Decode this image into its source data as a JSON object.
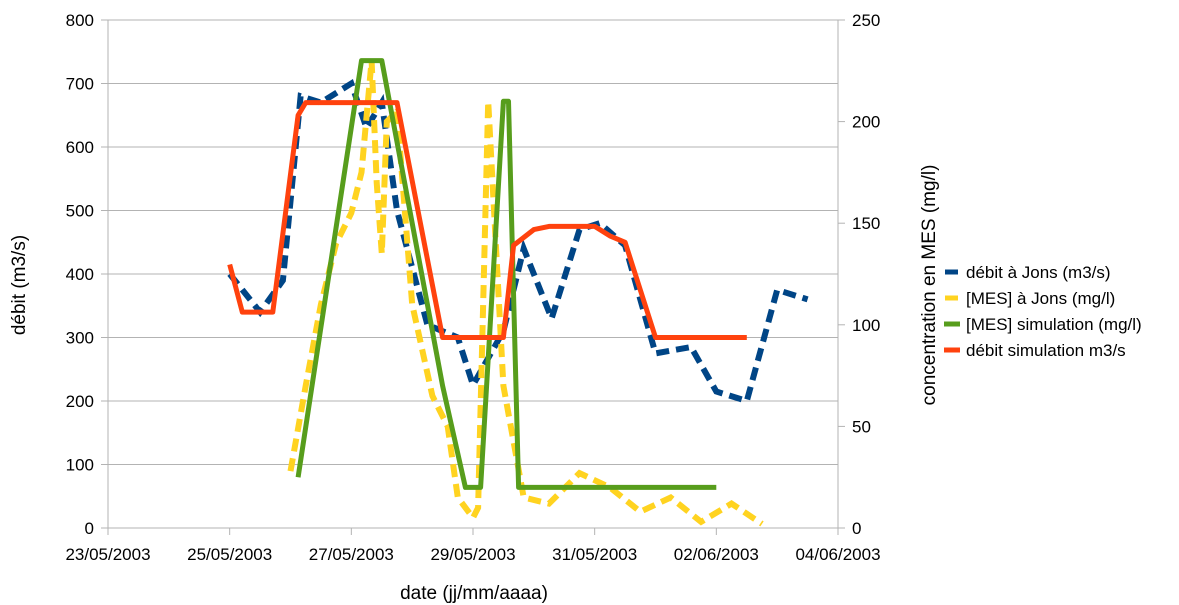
{
  "chart_data": {
    "type": "line",
    "title": "",
    "xlabel": "date (jj/mm/aaaa)",
    "ylabel": "débit (m3/s)",
    "y2label": "concentration en MES (mg/l)",
    "xlim": [
      "23/05/2003",
      "04/06/2003"
    ],
    "x_ticks": [
      "23/05/2003",
      "25/05/2003",
      "27/05/2003",
      "29/05/2003",
      "31/05/2003",
      "02/06/2003",
      "04/06/2003"
    ],
    "ylim": [
      0,
      800
    ],
    "y_ticks": [
      "0",
      "100",
      "200",
      "300",
      "400",
      "500",
      "600",
      "700",
      "800"
    ],
    "y2lim": [
      0,
      250
    ],
    "y2_ticks": [
      "0",
      "50",
      "100",
      "150",
      "200",
      "250"
    ],
    "grid": true,
    "legend_position": "right",
    "series": [
      {
        "name": "débit à Jons (m3/s)",
        "axis": "left",
        "color": "#004586",
        "dash": true,
        "x": [
          "25/05/2003 00:00",
          "25/05/2003 12:00",
          "25/05/2003 21:00",
          "26/05/2003 04:00",
          "26/05/2003 12:00",
          "27/05/2003 00:00",
          "27/05/2003 06:00",
          "27/05/2003 12:00",
          "27/05/2003 18:00",
          "28/05/2003 06:00",
          "28/05/2003 18:00",
          "29/05/2003 00:00",
          "29/05/2003 12:00",
          "29/05/2003 20:00",
          "30/05/2003 07:00",
          "30/05/2003 18:00",
          "31/05/2003 02:00",
          "31/05/2003 12:00",
          "01/06/2003 00:00",
          "01/06/2003 14:00",
          "02/06/2003 00:00",
          "02/06/2003 12:00",
          "03/06/2003 00:00",
          "03/06/2003 12:00"
        ],
        "values": [
          400,
          340,
          390,
          680,
          670,
          700,
          630,
          670,
          500,
          320,
          300,
          225,
          310,
          440,
          330,
          470,
          480,
          445,
          275,
          285,
          215,
          200,
          375,
          360
        ]
      },
      {
        "name": "[MES] à Jons (mg/l)",
        "axis": "right",
        "color": "#FFD320",
        "dash": true,
        "x": [
          "26/05/2003 00:00",
          "26/05/2003 06:00",
          "26/05/2003 12:00",
          "26/05/2003 18:00",
          "27/05/2003 00:00",
          "27/05/2003 04:00",
          "27/05/2003 08:00",
          "27/05/2003 10:00",
          "27/05/2003 12:00",
          "27/05/2003 14:00",
          "27/05/2003 18:00",
          "28/05/2003 00:00",
          "28/05/2003 08:00",
          "28/05/2003 14:00",
          "28/05/2003 18:00",
          "29/05/2003 00:00",
          "29/05/2003 02:00",
          "29/05/2003 06:00",
          "29/05/2003 12:00",
          "29/05/2003 20:00",
          "30/05/2003 06:00",
          "30/05/2003 18:00",
          "31/05/2003 06:00",
          "31/05/2003 18:00",
          "01/06/2003 06:00",
          "01/06/2003 18:00",
          "02/06/2003 06:00",
          "02/06/2003 18:00"
        ],
        "values": [
          28,
          70,
          110,
          140,
          155,
          175,
          230,
          170,
          135,
          200,
          205,
          110,
          65,
          50,
          15,
          5,
          10,
          210,
          70,
          15,
          12,
          27,
          20,
          8,
          15,
          3,
          12,
          2
        ]
      },
      {
        "name": "[MES] simulation (mg/l)",
        "axis": "right",
        "color": "#579D1C",
        "dash": false,
        "x": [
          "26/05/2003 03:00",
          "27/05/2003 04:00",
          "27/05/2003 12:00",
          "28/05/2003 12:00",
          "28/05/2003 21:00",
          "29/05/2003 03:00",
          "29/05/2003 12:00",
          "29/05/2003 14:00",
          "29/05/2003 18:00",
          "02/06/2003 00:00"
        ],
        "values": [
          25,
          230,
          230,
          70,
          20,
          20,
          210,
          210,
          20,
          20
        ]
      },
      {
        "name": "débit simulation m3/s",
        "axis": "left",
        "color": "#FF420E",
        "dash": false,
        "x": [
          "25/05/2003 00:00",
          "25/05/2003 05:00",
          "25/05/2003 17:00",
          "26/05/2003 03:00",
          "26/05/2003 06:00",
          "27/05/2003 18:00",
          "28/05/2003 12:00",
          "29/05/2003 06:00",
          "29/05/2003 12:00",
          "29/05/2003 16:00",
          "29/05/2003 24:00",
          "30/05/2003 06:00",
          "31/05/2003 00:00",
          "31/05/2003 06:00",
          "31/05/2003 12:00",
          "01/06/2003 00:00",
          "02/06/2003 00:00",
          "02/06/2003 12:00"
        ],
        "values": [
          415,
          340,
          340,
          650,
          670,
          670,
          300,
          300,
          300,
          445,
          470,
          475,
          475,
          460,
          450,
          300,
          300,
          300
        ]
      }
    ]
  }
}
